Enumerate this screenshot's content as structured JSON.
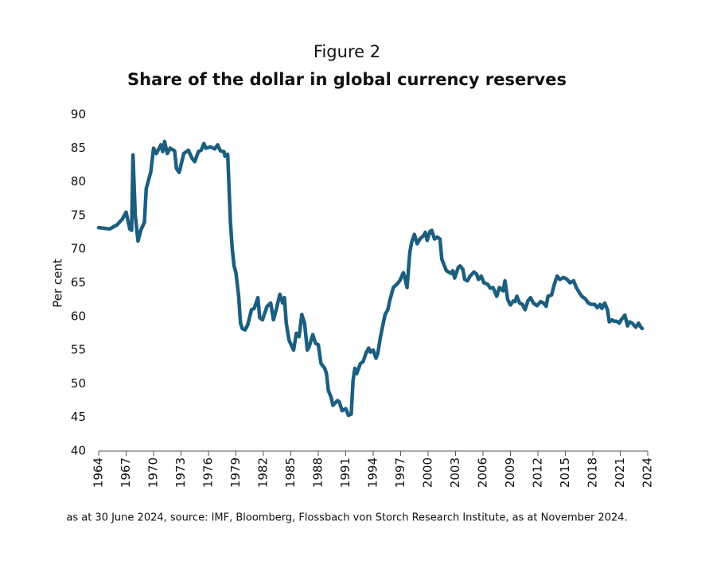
{
  "chart_data": {
    "type": "line",
    "title": "Figure 2",
    "subtitle": "Share of the dollar in global currency reserves",
    "y_label": "Per cent",
    "note": "as at 30 June 2024, source: IMF, Bloomberg, Flossbach von Storch Research Institute, as at November 2024.",
    "x": [
      1964,
      1965.2,
      1966,
      1966.6,
      1967,
      1967.4,
      1967.6,
      1967.75,
      1968,
      1968.3,
      1968.6,
      1969,
      1969.2,
      1969.7,
      1970,
      1970.3,
      1970.8,
      1971,
      1971.2,
      1971.5,
      1971.8,
      1972.3,
      1972.5,
      1972.8,
      1973.3,
      1973.8,
      1974.2,
      1974.5,
      1974.9,
      1975.2,
      1975.5,
      1975.7,
      1976.2,
      1976.7,
      1977,
      1977.3,
      1977.7,
      1977.8,
      1978.1,
      1978.4,
      1978.6,
      1978.8,
      1979,
      1979.3,
      1979.5,
      1979.7,
      1980,
      1980.3,
      1980.7,
      1981,
      1981.4,
      1981.6,
      1981.9,
      1982.4,
      1982.8,
      1983.1,
      1983.4,
      1983.8,
      1984.1,
      1984.3,
      1984.5,
      1984.8,
      1985.3,
      1985.6,
      1985.9,
      1986.2,
      1986.5,
      1986.8,
      1987,
      1987.4,
      1987.7,
      1988,
      1988.3,
      1988.7,
      1988.9,
      1989.1,
      1989.4,
      1989.6,
      1990.1,
      1990.3,
      1990.6,
      1991,
      1991.3,
      1991.6,
      1991.8,
      1992,
      1992.2,
      1992.6,
      1992.9,
      1993.2,
      1993.5,
      1993.7,
      1994,
      1994.3,
      1994.5,
      1994.8,
      1995.1,
      1995.3,
      1995.6,
      1995.8,
      1996.2,
      1996.6,
      1996.9,
      1997.3,
      1997.5,
      1997.7,
      1998,
      1998.2,
      1998.5,
      1998.8,
      1999.1,
      1999.5,
      1999.7,
      1999.9,
      2000.2,
      2000.4,
      2000.7,
      2001,
      2001.3,
      2001.5,
      2002,
      2002.5,
      2002.7,
      2002.9,
      2003.3,
      2003.5,
      2003.8,
      2004,
      2004.3,
      2004.6,
      2005,
      2005.3,
      2005.5,
      2005.8,
      2006.1,
      2006.5,
      2006.8,
      2007.1,
      2007.5,
      2007.8,
      2008.2,
      2008.4,
      2008.7,
      2009,
      2009.3,
      2009.5,
      2009.7,
      2010,
      2010.3,
      2010.6,
      2010.9,
      2011.2,
      2011.5,
      2011.9,
      2012.3,
      2012.6,
      2012.9,
      2013.1,
      2013.5,
      2013.8,
      2014.1,
      2014.4,
      2014.8,
      2015.2,
      2015.5,
      2015.9,
      2016.2,
      2016.5,
      2016.8,
      2017.2,
      2017.5,
      2017.8,
      2018.2,
      2018.5,
      2018.8,
      2019,
      2019.3,
      2019.6,
      2019.8,
      2020.1,
      2020.3,
      2020.6,
      2020.9,
      2021.1,
      2021.5,
      2021.8,
      2022,
      2022.3,
      2022.7,
      2023,
      2023.2,
      2023.4
    ],
    "values": [
      73.2,
      73.0,
      73.6,
      74.5,
      75.5,
      73.0,
      72.8,
      84.0,
      75.0,
      71.2,
      72.8,
      74.0,
      79.0,
      81.5,
      85.0,
      84.2,
      85.5,
      84.5,
      86.0,
      84.2,
      85.0,
      84.6,
      82.0,
      81.4,
      84.2,
      84.7,
      83.5,
      83.0,
      84.5,
      84.7,
      85.7,
      85.0,
      85.2,
      84.9,
      85.5,
      84.6,
      84.5,
      83.8,
      84.1,
      74.0,
      70.0,
      67.5,
      66.5,
      63.0,
      59.0,
      58.2,
      58.0,
      58.8,
      61.0,
      61.2,
      62.8,
      59.8,
      59.5,
      61.5,
      62.0,
      59.5,
      61.0,
      63.3,
      62.0,
      62.8,
      59.0,
      56.5,
      55.0,
      57.5,
      57.0,
      60.3,
      59.0,
      55.0,
      55.5,
      57.3,
      56.0,
      55.8,
      53.0,
      52.3,
      51.5,
      49.0,
      48.0,
      46.8,
      47.5,
      47.3,
      46.0,
      46.3,
      45.3,
      45.5,
      50.5,
      52.3,
      51.5,
      53.0,
      53.3,
      54.5,
      55.3,
      54.7,
      55.0,
      53.8,
      54.5,
      57.0,
      59.0,
      60.3,
      61.0,
      62.3,
      64.3,
      64.8,
      65.3,
      66.5,
      65.5,
      64.3,
      69.5,
      71.0,
      72.2,
      70.8,
      71.5,
      72.0,
      72.5,
      71.3,
      72.6,
      72.8,
      71.5,
      71.8,
      71.5,
      68.5,
      66.8,
      66.4,
      66.8,
      65.7,
      67.3,
      67.5,
      67.0,
      65.5,
      65.3,
      66.0,
      66.6,
      66.3,
      65.5,
      66.0,
      65.0,
      64.8,
      64.2,
      64.3,
      63.0,
      64.3,
      63.8,
      65.3,
      62.5,
      61.7,
      62.3,
      62.2,
      63.0,
      62.0,
      61.8,
      61.0,
      62.3,
      62.8,
      62.0,
      61.6,
      62.2,
      62.0,
      61.5,
      63.0,
      63.2,
      64.8,
      66.0,
      65.5,
      65.8,
      65.5,
      65.0,
      65.3,
      64.3,
      63.6,
      63.0,
      62.6,
      62.0,
      61.8,
      61.8,
      61.3,
      61.8,
      61.2,
      62.0,
      61.0,
      59.2,
      59.5,
      59.3,
      59.3,
      59.0,
      59.5,
      60.2,
      58.6,
      59.2,
      59.0,
      58.4,
      59.0,
      58.5,
      58.2
    ],
    "color": "#1b5e80",
    "xlim": [
      1964,
      2024
    ],
    "xticks": [
      1964,
      1967,
      1970,
      1973,
      1976,
      1979,
      1982,
      1985,
      1988,
      1991,
      1994,
      1997,
      2000,
      2003,
      2006,
      2009,
      2012,
      2015,
      2018,
      2021,
      2024
    ],
    "ylim": [
      40,
      90
    ],
    "yticks": [
      40,
      45,
      50,
      55,
      60,
      65,
      70,
      75,
      80,
      85,
      90
    ],
    "grid": false
  }
}
